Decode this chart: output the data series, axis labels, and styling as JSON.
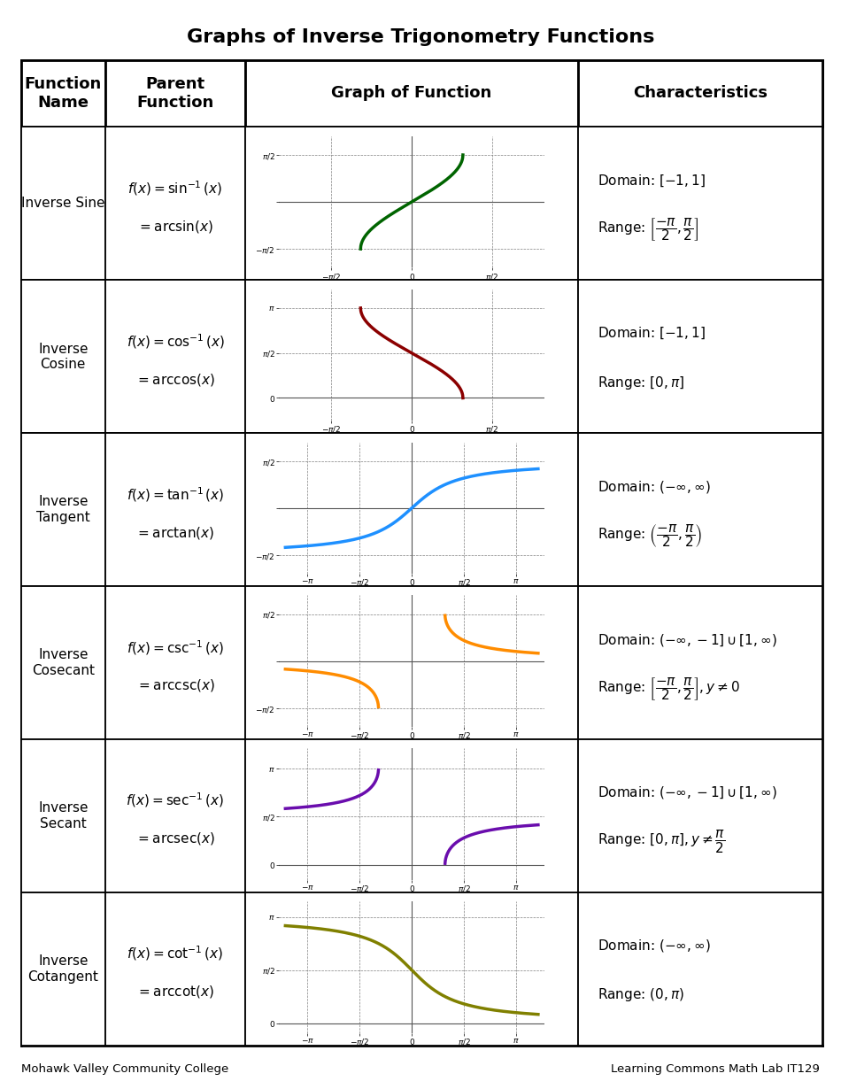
{
  "title": "Graphs of Inverse Trigonometry Functions",
  "footer_left": "Mohawk Valley Community College",
  "footer_right": "Learning Commons Math Lab IT129",
  "rows": [
    {
      "name": "Inverse Sine",
      "func_line1": "$f(x) = \\sin^{-1}(x)$",
      "func_line2": "$= \\arcsin(x)$",
      "color": "#006400",
      "domain_text": "Domain: $[-1,1]$",
      "range_text": "Range: $\\left[\\dfrac{-\\pi}{2}, \\dfrac{\\pi}{2}\\right]$",
      "func_type": "arcsin",
      "xlim": [
        -2.6,
        2.6
      ],
      "ylim": [
        -2.2,
        2.2
      ],
      "xticks": [
        -1.5708,
        0,
        1.5708
      ],
      "yticks": [
        -1.5708,
        0,
        1.5708
      ],
      "xtick_labels": [
        "$-\\pi/2$",
        "$0$",
        "$\\pi/2$"
      ],
      "ytick_labels": [
        "$-\\pi/2$",
        "",
        "$\\pi/2$"
      ]
    },
    {
      "name": "Inverse\nCosine",
      "func_line1": "$f(x) = \\cos^{-1}(x)$",
      "func_line2": "$= \\arccos(x)$",
      "color": "#8B0000",
      "domain_text": "Domain: $[-1,1]$",
      "range_text": "Range: $[0, \\pi]$",
      "func_type": "arccos",
      "xlim": [
        -2.6,
        2.6
      ],
      "ylim": [
        -0.8,
        3.8
      ],
      "xticks": [
        -1.5708,
        0,
        1.5708
      ],
      "yticks": [
        0,
        1.5708,
        3.1416
      ],
      "xtick_labels": [
        "$-\\pi/2$",
        "$0$",
        "$\\pi/2$"
      ],
      "ytick_labels": [
        "$0$",
        "$\\pi/2$",
        "$\\pi$"
      ]
    },
    {
      "name": "Inverse\nTangent",
      "func_line1": "$f(x) = \\tan^{-1}(x)$",
      "func_line2": "$= \\arctan(x)$",
      "color": "#1E90FF",
      "domain_text": "Domain: $(-\\infty, \\infty)$",
      "range_text": "Range: $\\left(\\dfrac{-\\pi}{2}, \\dfrac{\\pi}{2}\\right)$",
      "func_type": "arctan",
      "xlim": [
        -4.0,
        4.0
      ],
      "ylim": [
        -2.2,
        2.2
      ],
      "xticks": [
        -3.1416,
        -1.5708,
        0,
        1.5708,
        3.1416
      ],
      "yticks": [
        -1.5708,
        0,
        1.5708
      ],
      "xtick_labels": [
        "$-\\pi$",
        "$-\\pi/2$",
        "$0$",
        "$\\pi/2$",
        "$\\pi$"
      ],
      "ytick_labels": [
        "$-\\pi/2$",
        "",
        "$\\pi/2$"
      ]
    },
    {
      "name": "Inverse\nCosecant",
      "func_line1": "$f(x) = \\csc^{-1}(x)$",
      "func_line2": "$= \\text{arccsc}(x)$",
      "color": "#FF8C00",
      "domain_text": "Domain: $(-\\infty,-1] \\cup [1,\\infty)$",
      "range_text": "Range: $\\left[\\dfrac{-\\pi}{2}, \\dfrac{\\pi}{2}\\right], y \\neq 0$",
      "func_type": "arccsc",
      "xlim": [
        -4.0,
        4.0
      ],
      "ylim": [
        -2.2,
        2.2
      ],
      "xticks": [
        -3.1416,
        -1.5708,
        0,
        1.5708,
        3.1416
      ],
      "yticks": [
        -1.5708,
        0,
        1.5708
      ],
      "xtick_labels": [
        "$-\\pi$",
        "$-\\pi/2$",
        "$0$",
        "$\\pi/2$",
        "$\\pi$"
      ],
      "ytick_labels": [
        "$-\\pi/2$",
        "",
        "$\\pi/2$"
      ]
    },
    {
      "name": "Inverse\nSecant",
      "func_line1": "$f(x) = \\sec^{-1}(x)$",
      "func_line2": "$= \\text{arcsec}(x)$",
      "color": "#6A0DAD",
      "domain_text": "Domain: $(-\\infty,-1] \\cup [1,\\infty)$",
      "range_text": "Range: $[0, \\pi], y \\neq \\dfrac{\\pi}{2}$",
      "func_type": "arcsec",
      "xlim": [
        -4.0,
        4.0
      ],
      "ylim": [
        -0.5,
        3.8
      ],
      "xticks": [
        -3.1416,
        -1.5708,
        0,
        1.5708,
        3.1416
      ],
      "yticks": [
        0,
        1.5708,
        3.1416
      ],
      "xtick_labels": [
        "$-\\pi$",
        "$-\\pi/2$",
        "$0$",
        "$\\pi/2$",
        "$\\pi$"
      ],
      "ytick_labels": [
        "$0$",
        "$\\pi/2$",
        "$\\pi$"
      ]
    },
    {
      "name": "Inverse\nCotangent",
      "func_line1": "$f(x) = \\cot^{-1}(x)$",
      "func_line2": "$= \\text{arccot}(x)$",
      "color": "#808000",
      "domain_text": "Domain: $(-\\infty, \\infty)$",
      "range_text": "Range: $(0, \\pi)$",
      "func_type": "arccot",
      "xlim": [
        -4.0,
        4.0
      ],
      "ylim": [
        -0.3,
        3.6
      ],
      "xticks": [
        -3.1416,
        -1.5708,
        0,
        1.5708,
        3.1416
      ],
      "yticks": [
        0,
        1.5708,
        3.1416
      ],
      "xtick_labels": [
        "$-\\pi$",
        "$-\\pi/2$",
        "$0$",
        "$\\pi/2$",
        "$\\pi$"
      ],
      "ytick_labels": [
        "$0$",
        "$\\pi/2$",
        "$\\pi$"
      ]
    }
  ]
}
